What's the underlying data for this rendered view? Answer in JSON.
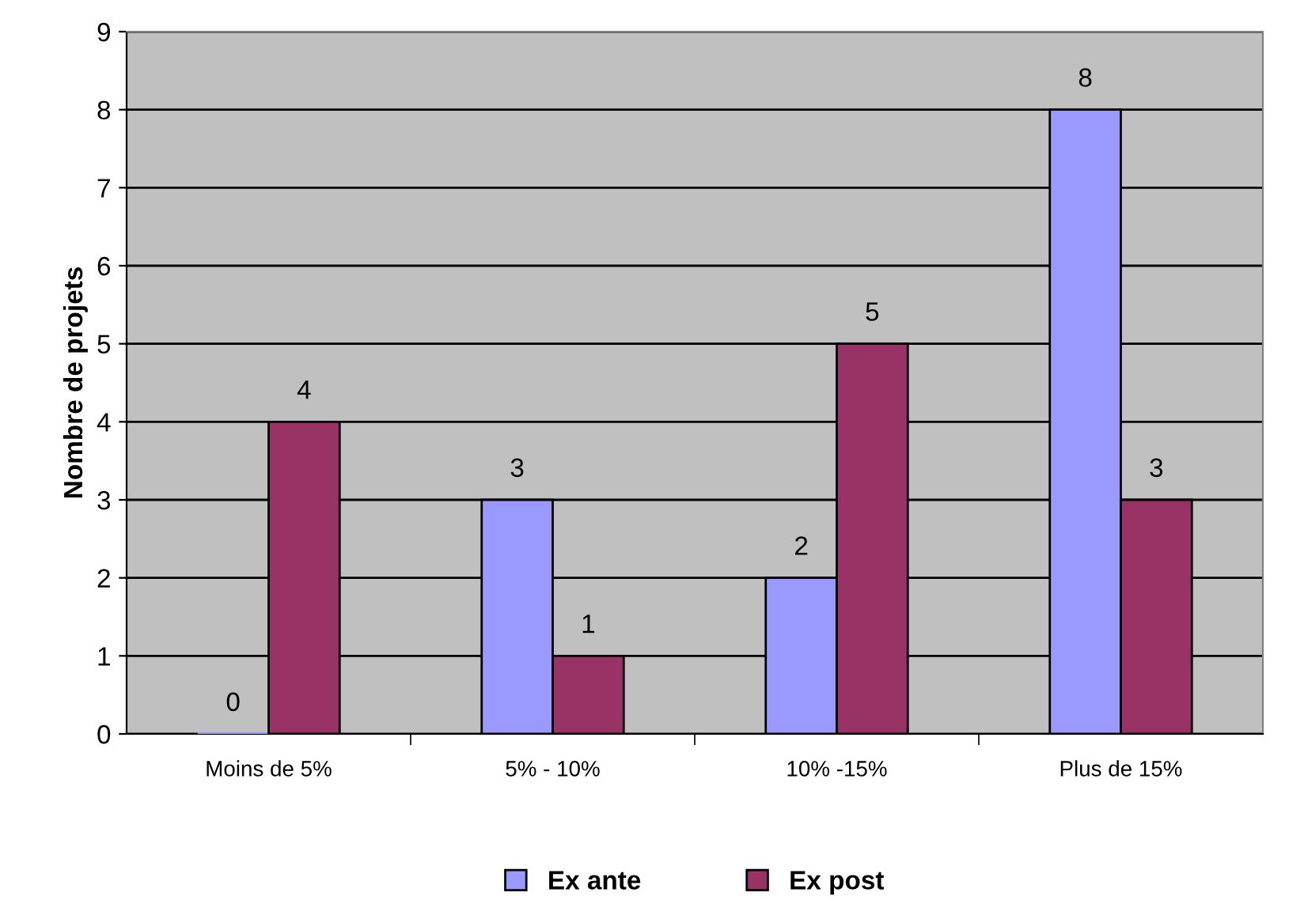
{
  "chart_data": {
    "type": "bar",
    "ylabel": "Nombre de projets",
    "categories": [
      "Moins de 5%",
      "5% - 10%",
      "10% -15%",
      "Plus de 15%"
    ],
    "series": [
      {
        "name": "Ex ante",
        "color": "#9999ff",
        "values": [
          0,
          3,
          2,
          8
        ]
      },
      {
        "name": "Ex post",
        "color": "#993366",
        "values": [
          4,
          1,
          5,
          3
        ]
      }
    ],
    "ylim": [
      0,
      9
    ],
    "yticks": [
      0,
      1,
      2,
      3,
      4,
      5,
      6,
      7,
      8,
      9
    ],
    "grid": "y",
    "legend": "bottom",
    "data_labels": true
  }
}
